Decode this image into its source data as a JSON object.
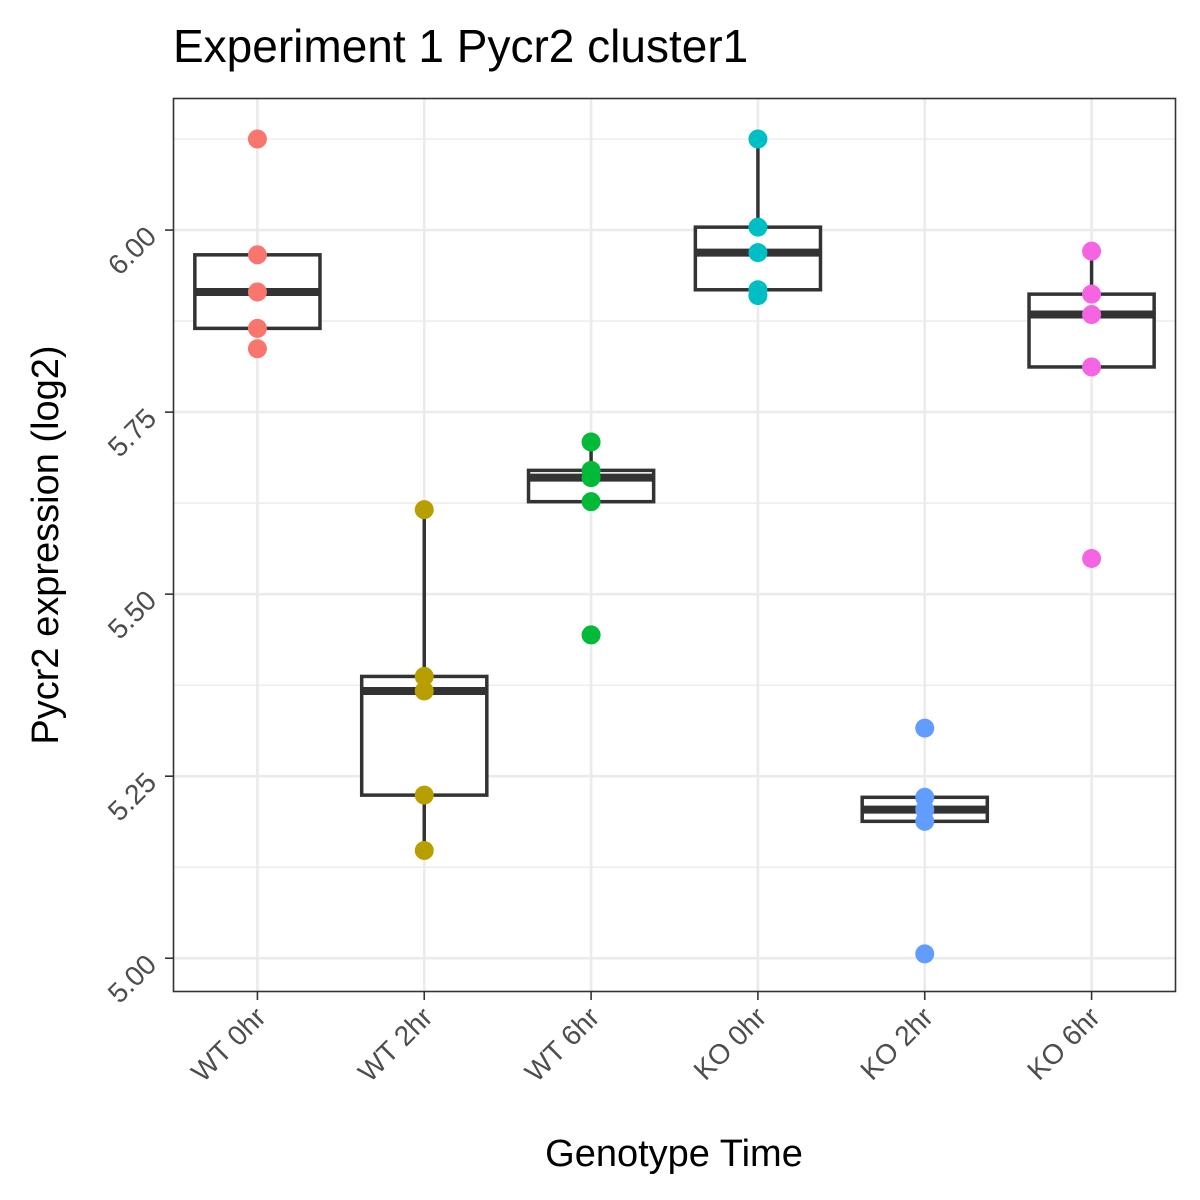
{
  "chart_data": {
    "type": "boxplot",
    "title": "Experiment 1 Pycr2 cluster1",
    "xlabel": "Genotype Time",
    "ylabel": "Pycr2 expression (log2)",
    "ylim": [
      4.955,
      6.18
    ],
    "yticks": [
      5.0,
      5.25,
      5.5,
      5.75,
      6.0
    ],
    "ytick_labels": [
      "5.00",
      "5.25",
      "5.50",
      "5.75",
      "6.00"
    ],
    "grid": true,
    "legend": "none",
    "categories": [
      "WT 0hr",
      "WT 2hr",
      "WT 6hr",
      "KO 0hr",
      "KO 2hr",
      "KO 6hr"
    ],
    "colors": [
      "#F8766D",
      "#B79F00",
      "#00BA38",
      "#00BFC4",
      "#619CFF",
      "#F564E3"
    ],
    "series": [
      {
        "category": "WT 0hr",
        "q1": 5.865,
        "median": 5.915,
        "q3": 5.966,
        "whisker_low": 5.865,
        "whisker_high": 5.966,
        "points": [
          6.125,
          5.966,
          5.915,
          5.865,
          5.837
        ]
      },
      {
        "category": "WT 2hr",
        "q1": 5.224,
        "median": 5.367,
        "q3": 5.387,
        "whisker_low": 5.148,
        "whisker_high": 5.616,
        "points": [
          5.616,
          5.387,
          5.367,
          5.224,
          5.148
        ]
      },
      {
        "category": "WT 6hr",
        "q1": 5.627,
        "median": 5.66,
        "q3": 5.67,
        "whisker_low": 5.627,
        "whisker_high": 5.709,
        "points": [
          5.709,
          5.67,
          5.66,
          5.627,
          5.444
        ]
      },
      {
        "category": "KO 0hr",
        "q1": 5.918,
        "median": 5.969,
        "q3": 6.004,
        "whisker_low": 5.91,
        "whisker_high": 6.125,
        "points": [
          6.125,
          6.004,
          5.969,
          5.918,
          5.91
        ]
      },
      {
        "category": "KO 2hr",
        "q1": 5.188,
        "median": 5.204,
        "q3": 5.221,
        "whisker_low": 5.188,
        "whisker_high": 5.221,
        "points": [
          5.316,
          5.221,
          5.204,
          5.188,
          5.006
        ]
      },
      {
        "category": "KO 6hr",
        "q1": 5.812,
        "median": 5.884,
        "q3": 5.912,
        "whisker_low": 5.812,
        "whisker_high": 5.971,
        "points": [
          5.971,
          5.912,
          5.884,
          5.812,
          5.549
        ]
      }
    ]
  }
}
